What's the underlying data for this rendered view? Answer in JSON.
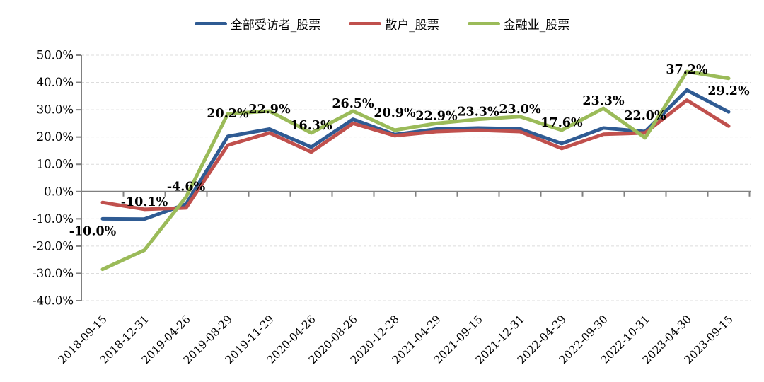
{
  "chart_data": {
    "type": "line",
    "x": [
      "2018-09-15",
      "2018-12-31",
      "2019-04-26",
      "2019-08-29",
      "2019-11-29",
      "2020-04-26",
      "2020-08-26",
      "2020-12-28",
      "2021-04-29",
      "2021-09-15",
      "2021-12-31",
      "2022-04-29",
      "2022-09-30",
      "2022-10-31",
      "2023-04-30",
      "2023-09-15"
    ],
    "series": [
      {
        "name": "全部受访者_股票",
        "color": "#2F5B93",
        "values": [
          -10.0,
          -10.1,
          -4.6,
          20.2,
          22.9,
          16.3,
          26.5,
          20.9,
          22.9,
          23.3,
          23.0,
          17.6,
          23.3,
          22.0,
          37.2,
          29.2
        ]
      },
      {
        "name": "散户_股票",
        "color": "#C0504D",
        "values": [
          -4.0,
          -6.5,
          -6.0,
          17.0,
          21.5,
          14.5,
          25.0,
          20.5,
          22.0,
          22.5,
          22.0,
          15.8,
          21.0,
          21.5,
          33.5,
          24.0
        ]
      },
      {
        "name": "金融业_股票",
        "color": "#9BBB59",
        "values": [
          -28.5,
          -21.5,
          -2.0,
          28.5,
          29.5,
          21.5,
          29.5,
          22.5,
          25.0,
          26.5,
          27.5,
          22.5,
          30.5,
          19.7,
          44.0,
          41.5
        ]
      }
    ],
    "data_labels": {
      "series": "全部受访者_股票",
      "values": [
        "-10.0%",
        "-10.1%",
        "-4.6%",
        "20.2%",
        "22.9%",
        "16.3%",
        "26.5%",
        "20.9%",
        "22.9%",
        "23.3%",
        "23.0%",
        "17.6%",
        "23.3%",
        "22.0%",
        "37.2%",
        "29.2%"
      ]
    },
    "y_ticks": [
      "50.0%",
      "40.0%",
      "30.0%",
      "20.0%",
      "10.0%",
      "0.0%",
      "-10.0%",
      "-20.0%",
      "-30.0%",
      "-40.0%"
    ],
    "ylim": [
      -40,
      50
    ],
    "grid": "horizontal-dashed",
    "legend_position": "top",
    "axis_color": "#808080",
    "grid_color": "#dcdcdc",
    "label_color": "#000000"
  }
}
